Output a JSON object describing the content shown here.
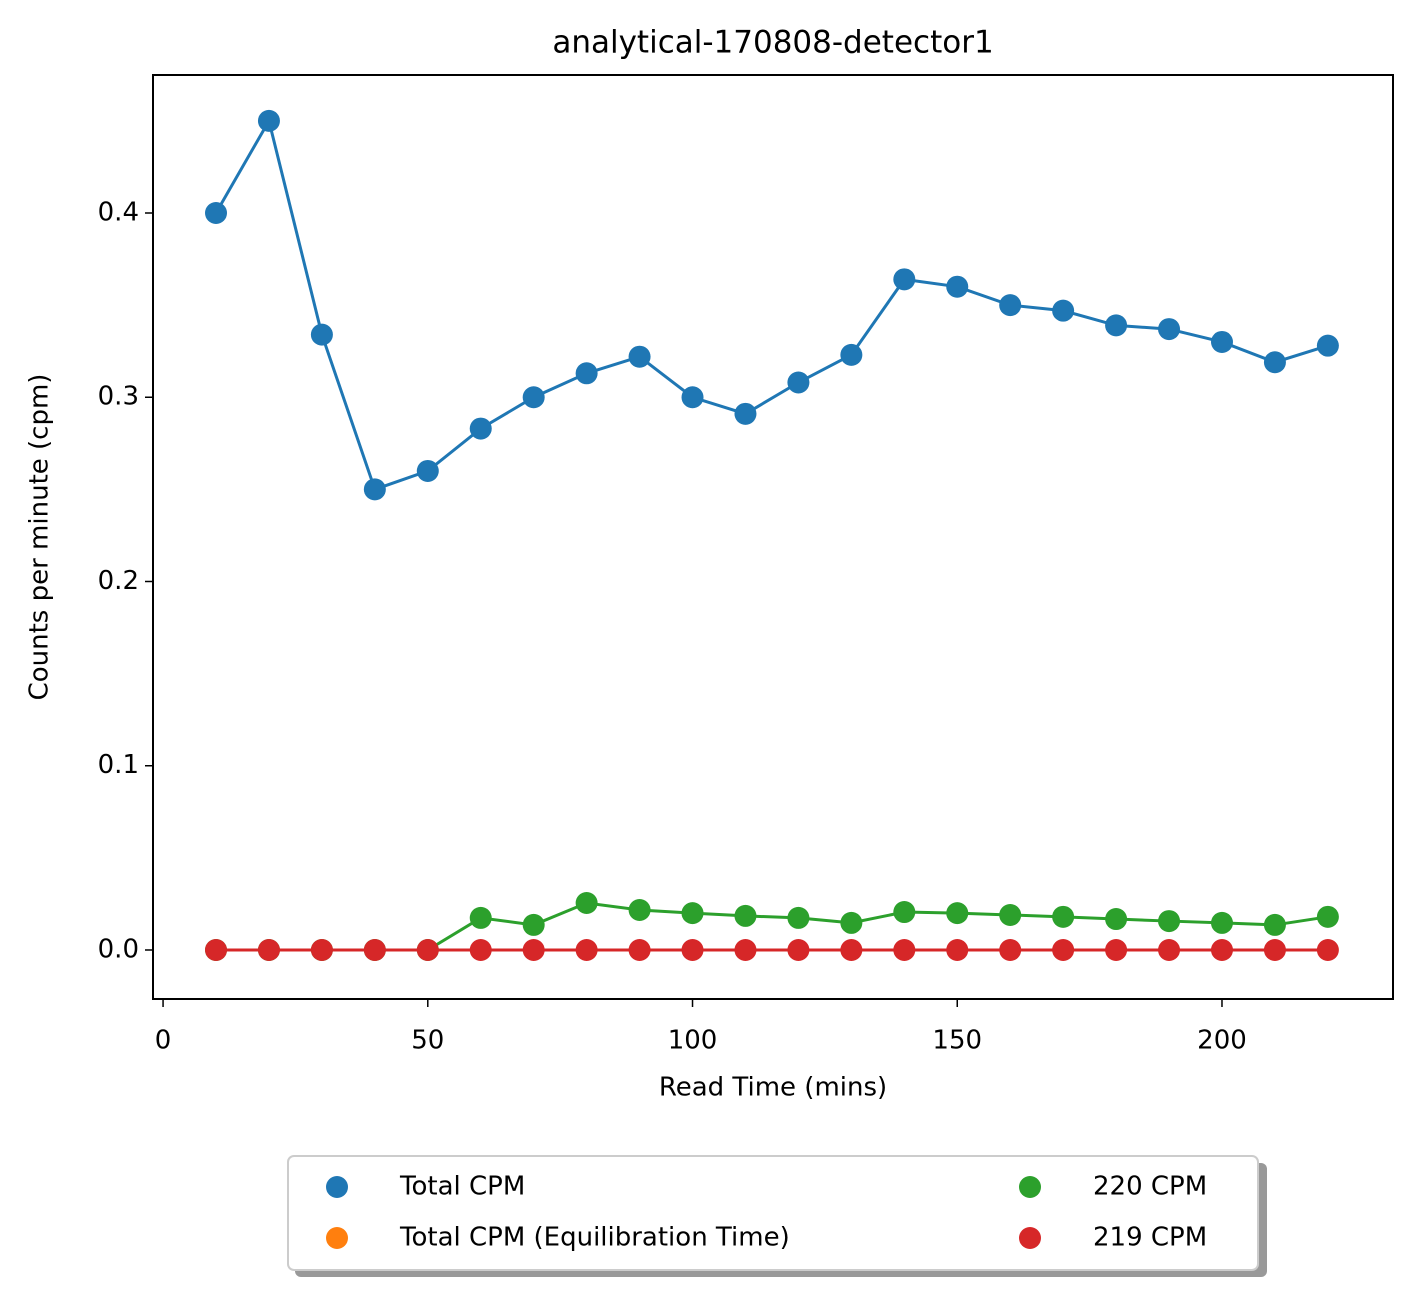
{
  "chart_data": {
    "type": "line",
    "title": "analytical-170808-detector1",
    "x_label": "Read Time (mins)",
    "y_label": "Counts per minute (cpm)",
    "x": [
      10,
      20,
      30,
      40,
      50,
      60,
      70,
      80,
      90,
      100,
      110,
      120,
      130,
      140,
      150,
      160,
      170,
      180,
      190,
      200,
      210,
      220
    ],
    "series": [
      {
        "name": "Total CPM",
        "color": "#1f77b4",
        "values": [
          0.4,
          0.45,
          0.334,
          0.25,
          0.26,
          0.283,
          0.3,
          0.313,
          0.322,
          0.3,
          0.291,
          0.308,
          0.323,
          0.364,
          0.36,
          0.35,
          0.347,
          0.339,
          0.337,
          0.33,
          0.319,
          0.328
        ]
      },
      {
        "name": "Total CPM (Equilibration Time)",
        "color": "#ff7f0e",
        "values": [
          null,
          null,
          null,
          null,
          null,
          null,
          null,
          null,
          null,
          null,
          null,
          null,
          null,
          null,
          null,
          null,
          null,
          null,
          null,
          null,
          null,
          null
        ]
      },
      {
        "name": "220 CPM",
        "color": "#2ca02c",
        "values": [
          0,
          0,
          0,
          0,
          0,
          0.0174,
          0.0136,
          0.0255,
          0.0217,
          0.02,
          0.0185,
          0.0174,
          0.0147,
          0.0206,
          0.02,
          0.019,
          0.018,
          0.0168,
          0.0157,
          0.0147,
          0.0136,
          0.018
        ]
      },
      {
        "name": "219 CPM",
        "color": "#d62728",
        "values": [
          0,
          0,
          0,
          0,
          0,
          0,
          0,
          0,
          0,
          0,
          0,
          0,
          0,
          0,
          0,
          0,
          0,
          0,
          0,
          0,
          0,
          0
        ]
      }
    ],
    "xlim": [
      -1.9,
      232.3
    ],
    "ylim": [
      -0.0266,
      0.4749
    ],
    "xticks": [
      0,
      50,
      100,
      150,
      200
    ],
    "yticks": [
      {
        "value": 0,
        "label": "0.0"
      },
      0.1,
      0.2,
      0.3,
      0.4
    ],
    "legend": "lower center"
  }
}
